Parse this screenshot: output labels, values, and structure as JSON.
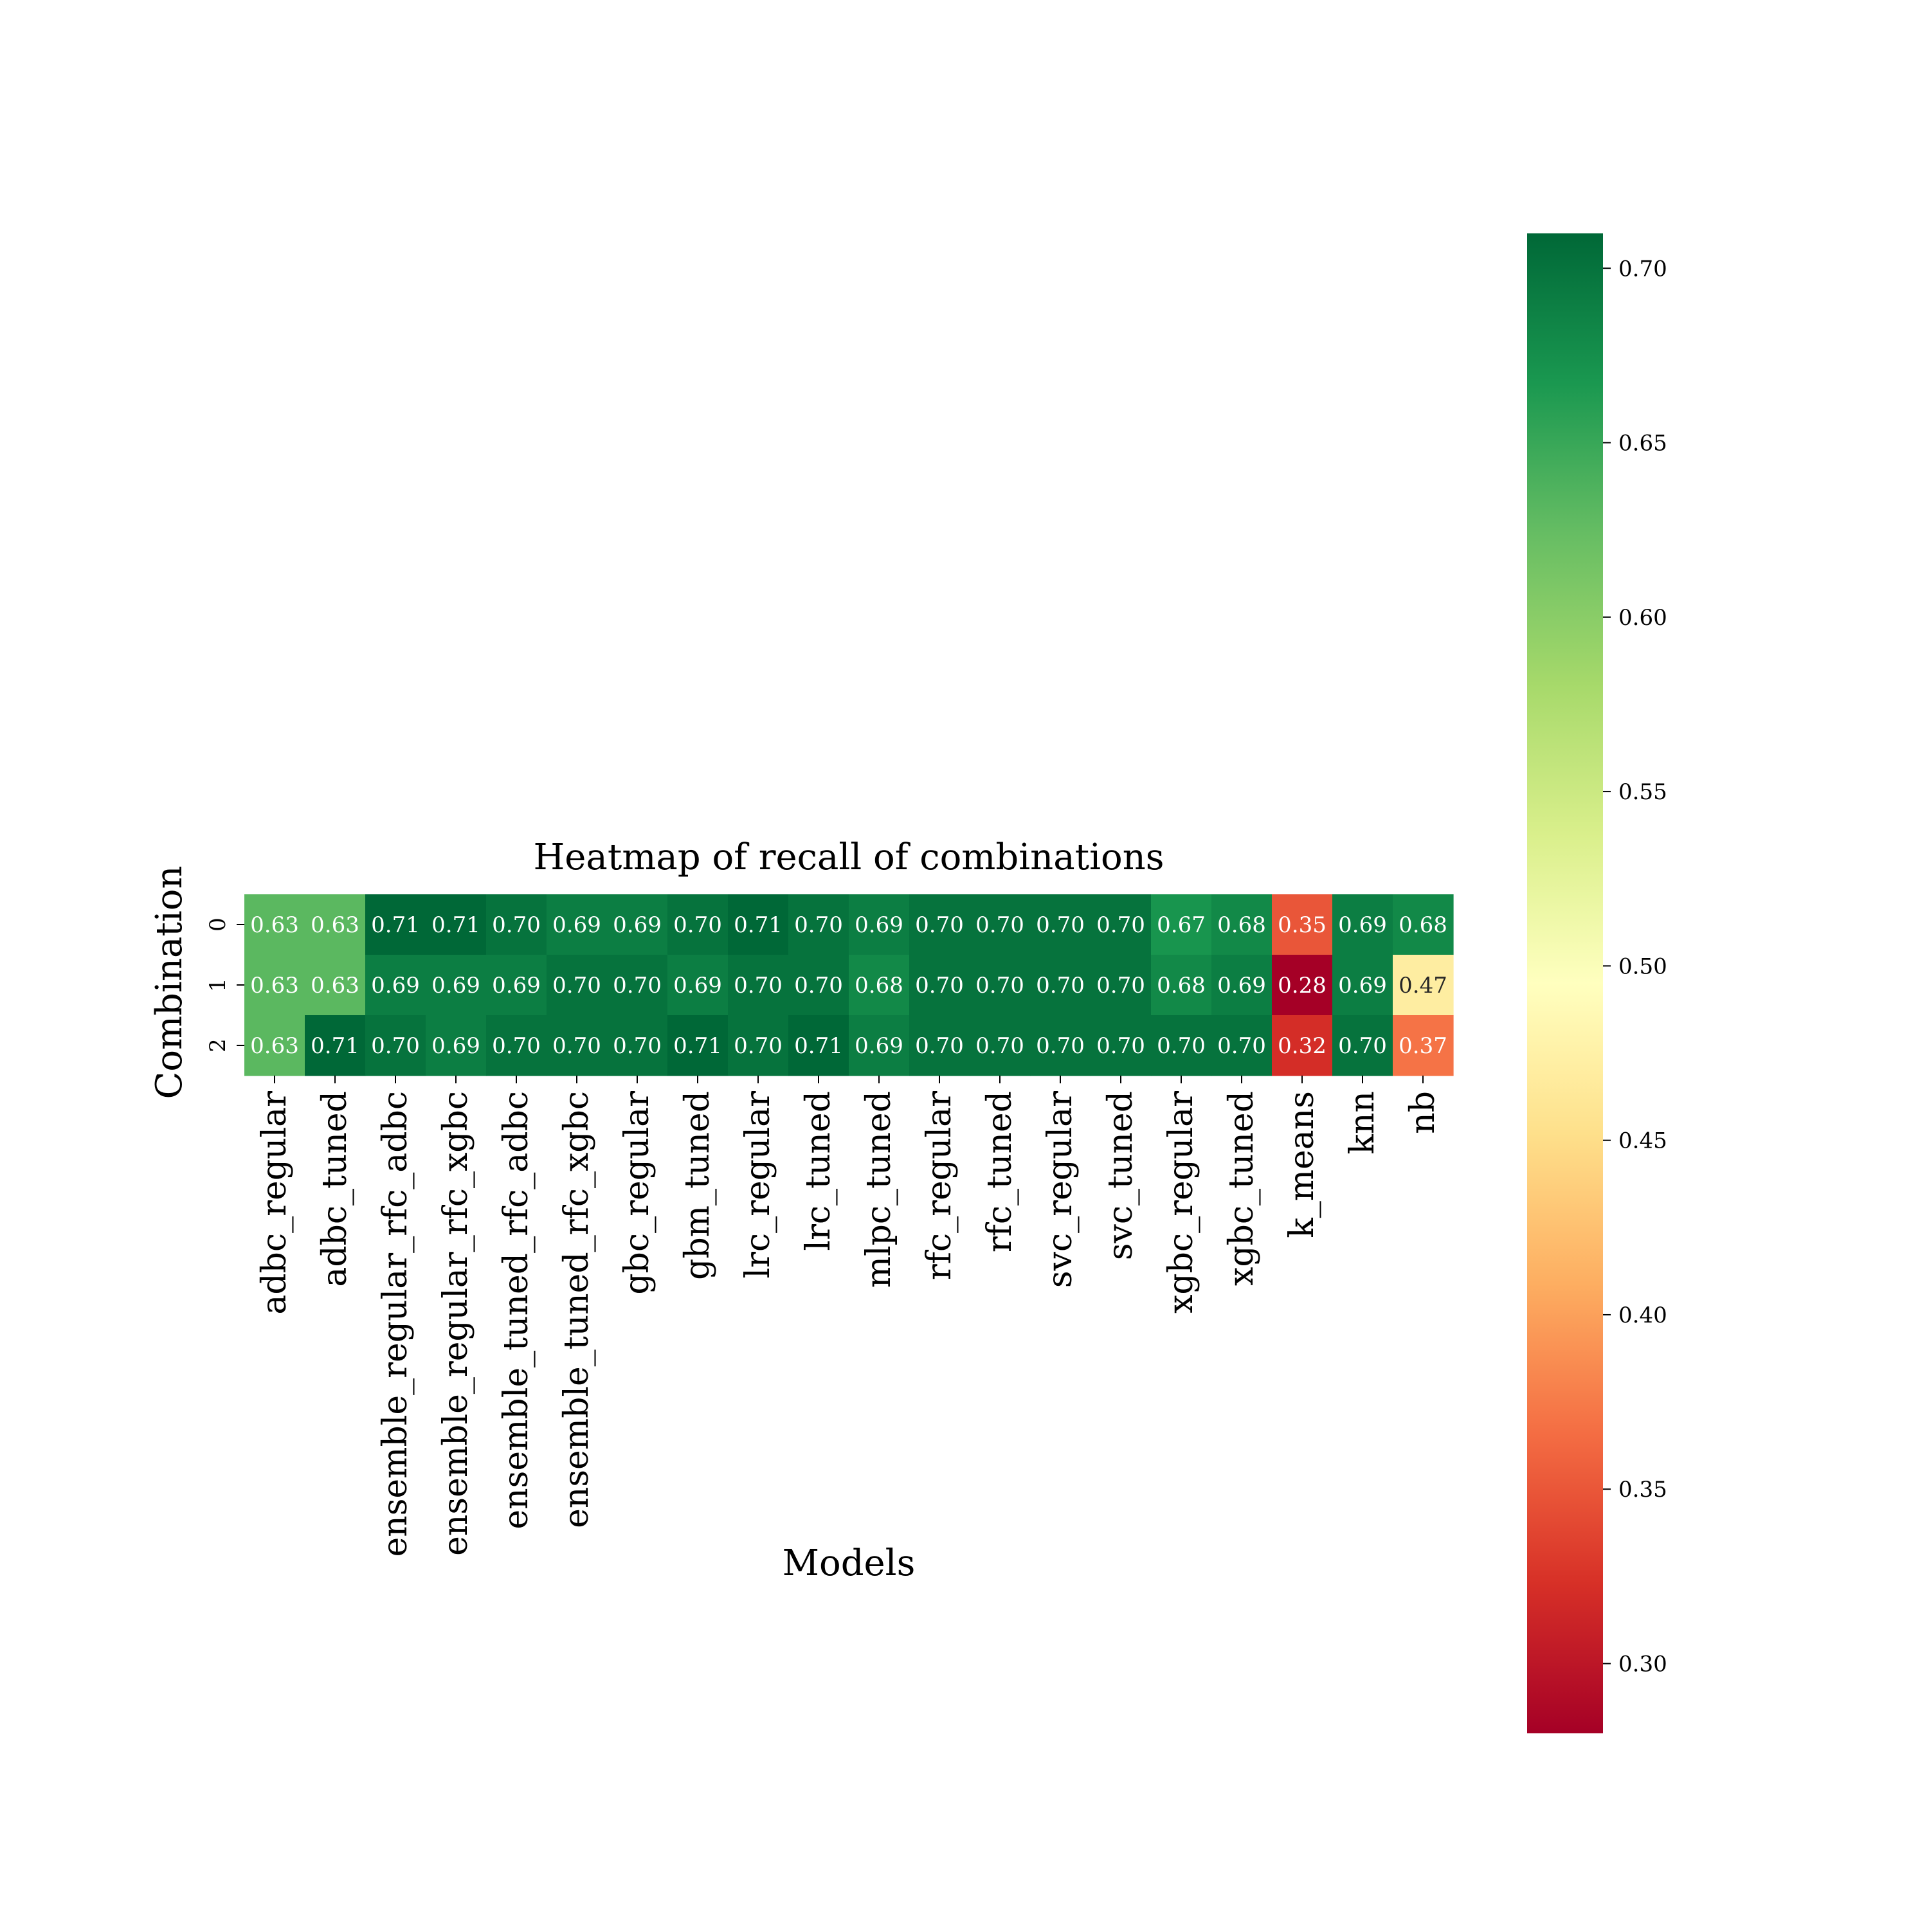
{
  "chart_data": {
    "type": "heatmap",
    "title": "Heatmap of recall of combinations",
    "xlabel": "Models",
    "ylabel": "Combination",
    "x_categories": [
      "adbc_regular",
      "adbc_tuned",
      "ensemble_regular_rfc_adbc",
      "ensemble_regular_rfc_xgbc",
      "ensemble_tuned_rfc_adbc",
      "ensemble_tuned_rfc_xgbc",
      "gbc_regular",
      "gbm_tuned",
      "lrc_regular",
      "lrc_tuned",
      "mlpc_tuned",
      "rfc_regular",
      "rfc_tuned",
      "svc_regular",
      "svc_tuned",
      "xgbc_regular",
      "xgbc_tuned",
      "k_means",
      "knn",
      "nb"
    ],
    "y_categories": [
      "0",
      "1",
      "2"
    ],
    "values": [
      [
        0.63,
        0.63,
        0.71,
        0.71,
        0.7,
        0.69,
        0.69,
        0.7,
        0.71,
        0.7,
        0.69,
        0.7,
        0.7,
        0.7,
        0.7,
        0.67,
        0.68,
        0.35,
        0.69,
        0.68
      ],
      [
        0.63,
        0.63,
        0.69,
        0.69,
        0.69,
        0.7,
        0.7,
        0.69,
        0.7,
        0.7,
        0.68,
        0.7,
        0.7,
        0.7,
        0.7,
        0.68,
        0.69,
        0.28,
        0.69,
        0.47
      ],
      [
        0.63,
        0.71,
        0.7,
        0.69,
        0.7,
        0.7,
        0.7,
        0.71,
        0.7,
        0.71,
        0.69,
        0.7,
        0.7,
        0.7,
        0.7,
        0.7,
        0.7,
        0.32,
        0.7,
        0.37
      ]
    ],
    "colormap": "RdYlGn",
    "vmin": 0.28,
    "vmax": 0.71,
    "colorbar_ticks": [
      "0.30",
      "0.35",
      "0.40",
      "0.45",
      "0.50",
      "0.55",
      "0.60",
      "0.65",
      "0.70"
    ],
    "annotate": true,
    "grid": false
  }
}
